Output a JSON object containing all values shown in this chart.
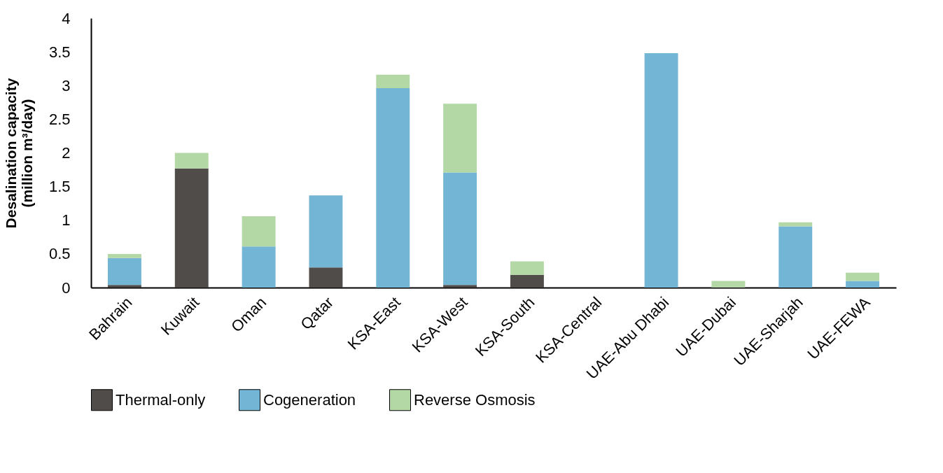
{
  "chart_data": {
    "type": "bar",
    "stacked": true,
    "ylabel": "Desalination capacity\n(million m³/day)",
    "categories": [
      "Bahrain",
      "Kuwait",
      "Oman",
      "Qatar",
      "KSA-East",
      "KSA-West",
      "KSA-South",
      "KSA-Central",
      "UAE-Abu Dhabi",
      "UAE-Dubai",
      "UAE-Sharjah",
      "UAE-FEWA"
    ],
    "series": [
      {
        "name": "Thermal-only",
        "color": "#4f4c4a",
        "values": [
          0.04,
          1.77,
          0,
          0.3,
          0,
          0.04,
          0.19,
          0,
          0,
          0,
          0,
          0
        ]
      },
      {
        "name": "Cogeneration",
        "color": "#73b5d4",
        "values": [
          0.4,
          0,
          0.61,
          1.07,
          2.96,
          1.67,
          0,
          0,
          3.48,
          0,
          0.91,
          0.1
        ]
      },
      {
        "name": "Reverse Osmosis",
        "color": "#b3d7a5",
        "values": [
          0.06,
          0.23,
          0.45,
          0,
          0.2,
          1.02,
          0.2,
          0,
          0,
          0.1,
          0.06,
          0.12
        ]
      }
    ],
    "ylim": [
      0,
      4
    ],
    "yticks": [
      0,
      0.5,
      1,
      1.5,
      2,
      2.5,
      3,
      3.5,
      4
    ],
    "grid": false,
    "legend": "bottom"
  }
}
